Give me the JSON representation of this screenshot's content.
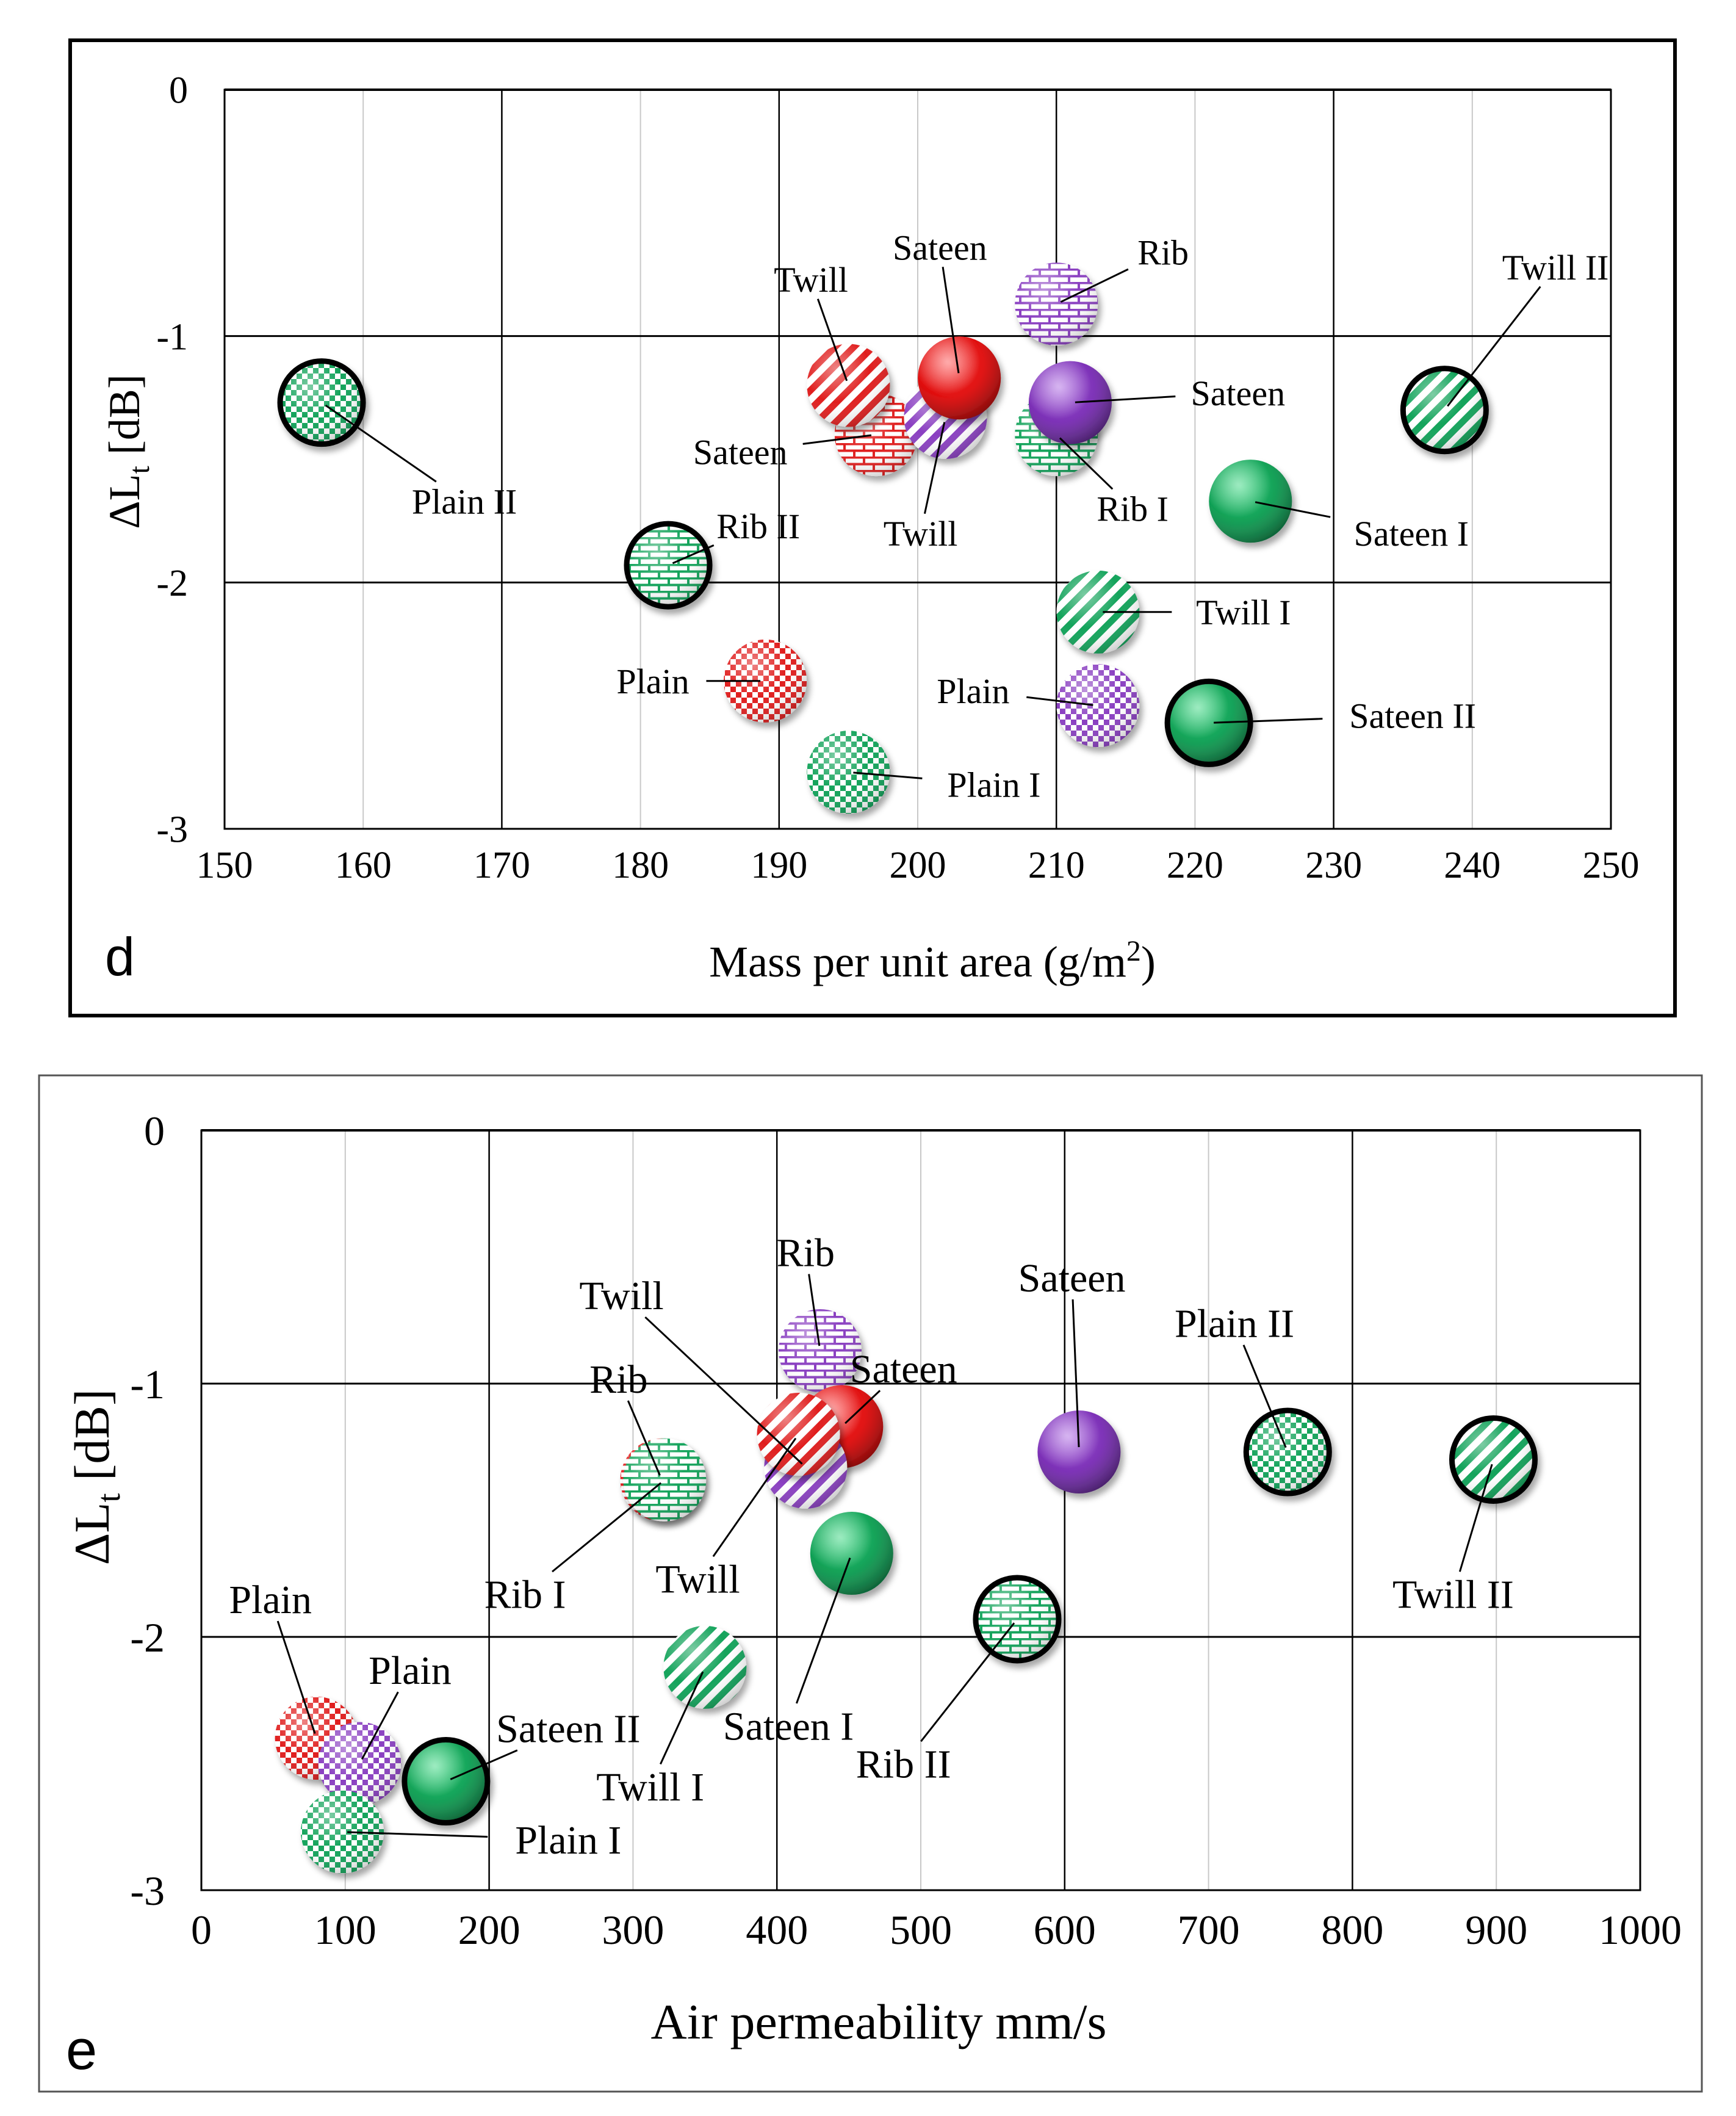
{
  "chart_data": [
    {
      "panel_label": "d",
      "type": "scatter",
      "xlabel_main": "Mass per unit area (g/m",
      "xlabel_sup": "2",
      "xlabel_tail": ")",
      "ylabel_main": "ΔL",
      "ylabel_sub": "t",
      "ylabel_tail": " [dB]",
      "xlim": [
        150,
        250
      ],
      "ylim": [
        -3,
        0
      ],
      "xticks": [
        "150",
        "160",
        "170",
        "180",
        "190",
        "200",
        "210",
        "220",
        "230",
        "240",
        "250"
      ],
      "yticks": [
        "0",
        "-1",
        "-2",
        "-3"
      ],
      "points": [
        {
          "label": "Plain II",
          "x": 157,
          "y": -1.27,
          "color": "green",
          "pattern": "check",
          "ring": true,
          "lx": 167.3,
          "ly": -1.67
        },
        {
          "label": "Rib II",
          "x": 182,
          "y": -1.93,
          "color": "green",
          "pattern": "brick",
          "ring": true,
          "lx": 188.5,
          "ly": -1.77
        },
        {
          "label": "Plain",
          "x": 189,
          "y": -2.4,
          "color": "red",
          "pattern": "check",
          "ring": false,
          "lx": 180.9,
          "ly": -2.4
        },
        {
          "label": "Plain I",
          "x": 195,
          "y": -2.77,
          "color": "green",
          "pattern": "check",
          "ring": false,
          "lx": 205.5,
          "ly": -2.82
        },
        {
          "label": "Sateen",
          "x": 197,
          "y": -1.4,
          "color": "red",
          "pattern": "brick",
          "ring": false,
          "lx": 187.2,
          "ly": -1.47
        },
        {
          "label": "Twill",
          "x": 195,
          "y": -1.2,
          "color": "red",
          "pattern": "stripe",
          "ring": false,
          "lx": 192.3,
          "ly": -0.77
        },
        {
          "label": "Twill",
          "x": 202,
          "y": -1.33,
          "color": "purple",
          "pattern": "stripe",
          "ring": false,
          "lx": 200.2,
          "ly": -1.8
        },
        {
          "label": "Sateen",
          "x": 203,
          "y": -1.17,
          "color": "red",
          "pattern": "solid",
          "ring": false,
          "lx": 201.6,
          "ly": -0.64
        },
        {
          "label": "Rib",
          "x": 210,
          "y": -0.87,
          "color": "purple",
          "pattern": "brick",
          "ring": false,
          "lx": 217.7,
          "ly": -0.66
        },
        {
          "label": "Rib I",
          "x": 210,
          "y": -1.4,
          "color": "green",
          "pattern": "brick",
          "ring": false,
          "lx": 215.5,
          "ly": -1.7
        },
        {
          "label": "Sateen",
          "x": 211,
          "y": -1.27,
          "color": "purple",
          "pattern": "solid",
          "ring": false,
          "lx": 223.1,
          "ly": -1.23
        },
        {
          "label": "Twill II",
          "x": 238,
          "y": -1.3,
          "color": "green",
          "pattern": "stripe",
          "ring": true,
          "lx": 246,
          "ly": -0.72
        },
        {
          "label": "Sateen I",
          "x": 224,
          "y": -1.67,
          "color": "green",
          "pattern": "solid",
          "ring": false,
          "lx": 235.6,
          "ly": -1.8
        },
        {
          "label": "Twill I",
          "x": 213,
          "y": -2.12,
          "color": "green",
          "pattern": "stripe",
          "ring": false,
          "lx": 223.5,
          "ly": -2.12
        },
        {
          "label": "Plain",
          "x": 213,
          "y": -2.5,
          "color": "purple",
          "pattern": "check",
          "ring": false,
          "lx": 204,
          "ly": -2.44
        },
        {
          "label": "Sateen II",
          "x": 221,
          "y": -2.57,
          "color": "green",
          "pattern": "solid",
          "ring": true,
          "lx": 235.7,
          "ly": -2.54
        }
      ]
    },
    {
      "panel_label": "e",
      "type": "scatter",
      "xlabel_main": "Air permeability mm/s",
      "ylabel_main": "ΔL",
      "ylabel_sub": "t",
      "ylabel_tail": " [dB]",
      "xlim": [
        0,
        1000
      ],
      "ylim": [
        -3,
        0
      ],
      "xticks": [
        "0",
        "100",
        "200",
        "300",
        "400",
        "500",
        "600",
        "700",
        "800",
        "900",
        "1000"
      ],
      "yticks": [
        "0",
        "-1",
        "-2",
        "-3"
      ],
      "points": [
        {
          "label": "Plain",
          "x": 80,
          "y": -2.4,
          "color": "red",
          "pattern": "check",
          "ring": false,
          "lx": 48,
          "ly": -1.85
        },
        {
          "label": "Plain",
          "x": 110,
          "y": -2.5,
          "color": "purple",
          "pattern": "check",
          "ring": false,
          "lx": 145,
          "ly": -2.13
        },
        {
          "label": "Plain I",
          "x": 98,
          "y": -2.77,
          "color": "green",
          "pattern": "check",
          "ring": false,
          "lx": 255,
          "ly": -2.8
        },
        {
          "label": "Sateen II",
          "x": 170,
          "y": -2.57,
          "color": "green",
          "pattern": "solid",
          "ring": true,
          "lx": 255,
          "ly": -2.36
        },
        {
          "label": "Twill I",
          "x": 350,
          "y": -2.12,
          "color": "green",
          "pattern": "stripe",
          "ring": false,
          "lx": 312,
          "ly": -2.59
        },
        {
          "label": "Rib",
          "x": 320,
          "y": -1.38,
          "color": "red",
          "pattern": "brick",
          "ring": false,
          "lx": 290,
          "ly": -0.98
        },
        {
          "label": "Rib I",
          "x": 322,
          "y": -1.38,
          "color": "green",
          "pattern": "brick",
          "ring": false,
          "lx": 225,
          "ly": -1.83
        },
        {
          "label": "Rib",
          "x": 430,
          "y": -0.87,
          "color": "purple",
          "pattern": "brick",
          "ring": false,
          "lx": 420,
          "ly": -0.48
        },
        {
          "label": "Sateen",
          "x": 445,
          "y": -1.17,
          "color": "red",
          "pattern": "solid",
          "ring": false,
          "lx": 488,
          "ly": -0.94
        },
        {
          "label": "Twill",
          "x": 420,
          "y": -1.33,
          "color": "purple",
          "pattern": "stripe",
          "ring": false,
          "lx": 292,
          "ly": -0.65
        },
        {
          "label": "Twill",
          "x": 415,
          "y": -1.2,
          "color": "red",
          "pattern": "stripe",
          "ring": false,
          "lx": 345,
          "ly": -1.77
        },
        {
          "label": "Sateen I",
          "x": 452,
          "y": -1.67,
          "color": "green",
          "pattern": "solid",
          "ring": false,
          "lx": 408,
          "ly": -2.35
        },
        {
          "label": "Rib II",
          "x": 567,
          "y": -1.93,
          "color": "green",
          "pattern": "brick",
          "ring": true,
          "lx": 488,
          "ly": -2.5
        },
        {
          "label": "Sateen",
          "x": 610,
          "y": -1.27,
          "color": "purple",
          "pattern": "solid",
          "ring": false,
          "lx": 605,
          "ly": -0.58
        },
        {
          "label": "Plain II",
          "x": 755,
          "y": -1.27,
          "color": "green",
          "pattern": "check",
          "ring": true,
          "lx": 718,
          "ly": -0.76
        },
        {
          "label": "Twill II",
          "x": 898,
          "y": -1.3,
          "color": "green",
          "pattern": "stripe",
          "ring": true,
          "lx": 870,
          "ly": -1.83
        }
      ]
    }
  ]
}
